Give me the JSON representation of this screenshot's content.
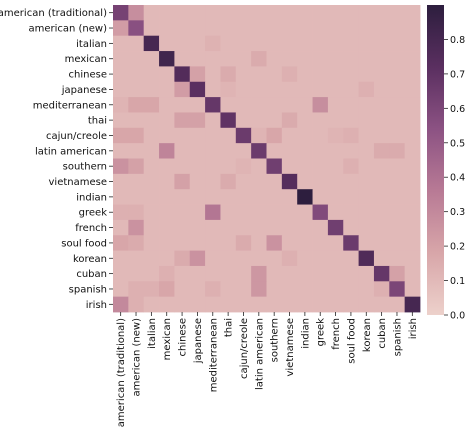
{
  "chart_data": {
    "type": "heatmap",
    "title": "",
    "xlabel": "",
    "ylabel": "",
    "categories": [
      "american (traditional)",
      "american (new)",
      "italian",
      "mexican",
      "chinese",
      "japanese",
      "mediterranean",
      "thai",
      "cajun/creole",
      "latin american",
      "southern",
      "vietnamese",
      "indian",
      "greek",
      "french",
      "soul food",
      "korean",
      "cuban",
      "spanish",
      "irish"
    ],
    "values": [
      [
        0.62,
        0.28,
        0.1,
        0.1,
        0.1,
        0.1,
        0.1,
        0.1,
        0.1,
        0.1,
        0.1,
        0.1,
        0.1,
        0.1,
        0.1,
        0.1,
        0.1,
        0.1,
        0.1,
        0.1
      ],
      [
        0.22,
        0.55,
        0.1,
        0.1,
        0.1,
        0.1,
        0.1,
        0.1,
        0.1,
        0.1,
        0.1,
        0.1,
        0.1,
        0.1,
        0.1,
        0.1,
        0.1,
        0.1,
        0.1,
        0.1
      ],
      [
        0.1,
        0.1,
        0.8,
        0.1,
        0.1,
        0.1,
        0.13,
        0.1,
        0.1,
        0.1,
        0.1,
        0.1,
        0.1,
        0.1,
        0.1,
        0.1,
        0.1,
        0.1,
        0.1,
        0.1
      ],
      [
        0.1,
        0.1,
        0.1,
        0.82,
        0.1,
        0.1,
        0.1,
        0.1,
        0.1,
        0.16,
        0.1,
        0.1,
        0.1,
        0.1,
        0.1,
        0.1,
        0.1,
        0.1,
        0.1,
        0.1
      ],
      [
        0.1,
        0.1,
        0.1,
        0.1,
        0.75,
        0.2,
        0.1,
        0.16,
        0.1,
        0.1,
        0.1,
        0.14,
        0.1,
        0.1,
        0.1,
        0.1,
        0.1,
        0.1,
        0.1,
        0.1
      ],
      [
        0.1,
        0.1,
        0.1,
        0.1,
        0.22,
        0.72,
        0.1,
        0.12,
        0.1,
        0.1,
        0.1,
        0.1,
        0.1,
        0.1,
        0.1,
        0.1,
        0.14,
        0.1,
        0.1,
        0.1
      ],
      [
        0.12,
        0.18,
        0.18,
        0.1,
        0.1,
        0.1,
        0.68,
        0.1,
        0.1,
        0.1,
        0.1,
        0.1,
        0.1,
        0.28,
        0.1,
        0.1,
        0.1,
        0.1,
        0.1,
        0.1
      ],
      [
        0.1,
        0.1,
        0.1,
        0.1,
        0.2,
        0.2,
        0.1,
        0.7,
        0.1,
        0.1,
        0.1,
        0.16,
        0.1,
        0.1,
        0.1,
        0.1,
        0.1,
        0.1,
        0.1,
        0.1
      ],
      [
        0.18,
        0.18,
        0.1,
        0.1,
        0.1,
        0.1,
        0.1,
        0.1,
        0.66,
        0.12,
        0.18,
        0.1,
        0.1,
        0.1,
        0.12,
        0.14,
        0.1,
        0.1,
        0.1,
        0.1
      ],
      [
        0.1,
        0.1,
        0.1,
        0.32,
        0.1,
        0.1,
        0.1,
        0.1,
        0.1,
        0.66,
        0.1,
        0.1,
        0.1,
        0.1,
        0.1,
        0.1,
        0.1,
        0.16,
        0.16,
        0.1
      ],
      [
        0.26,
        0.2,
        0.1,
        0.1,
        0.1,
        0.1,
        0.1,
        0.1,
        0.12,
        0.1,
        0.64,
        0.1,
        0.1,
        0.1,
        0.1,
        0.14,
        0.1,
        0.1,
        0.1,
        0.1
      ],
      [
        0.1,
        0.1,
        0.1,
        0.1,
        0.2,
        0.1,
        0.1,
        0.16,
        0.1,
        0.1,
        0.1,
        0.74,
        0.1,
        0.1,
        0.1,
        0.1,
        0.1,
        0.1,
        0.1,
        0.1
      ],
      [
        0.1,
        0.1,
        0.1,
        0.1,
        0.1,
        0.1,
        0.1,
        0.1,
        0.1,
        0.1,
        0.1,
        0.1,
        0.9,
        0.1,
        0.1,
        0.1,
        0.1,
        0.1,
        0.1,
        0.1
      ],
      [
        0.14,
        0.14,
        0.1,
        0.1,
        0.1,
        0.1,
        0.38,
        0.1,
        0.1,
        0.1,
        0.1,
        0.1,
        0.1,
        0.58,
        0.1,
        0.1,
        0.1,
        0.1,
        0.1,
        0.1
      ],
      [
        0.1,
        0.26,
        0.1,
        0.1,
        0.1,
        0.1,
        0.1,
        0.1,
        0.1,
        0.1,
        0.1,
        0.1,
        0.1,
        0.1,
        0.64,
        0.1,
        0.1,
        0.1,
        0.1,
        0.1
      ],
      [
        0.18,
        0.16,
        0.1,
        0.1,
        0.1,
        0.1,
        0.1,
        0.1,
        0.16,
        0.1,
        0.26,
        0.1,
        0.1,
        0.1,
        0.1,
        0.66,
        0.1,
        0.1,
        0.1,
        0.1
      ],
      [
        0.1,
        0.1,
        0.1,
        0.1,
        0.16,
        0.26,
        0.1,
        0.1,
        0.1,
        0.1,
        0.1,
        0.14,
        0.1,
        0.1,
        0.1,
        0.1,
        0.76,
        0.1,
        0.1,
        0.1
      ],
      [
        0.1,
        0.1,
        0.1,
        0.14,
        0.1,
        0.1,
        0.1,
        0.1,
        0.1,
        0.24,
        0.1,
        0.1,
        0.1,
        0.1,
        0.1,
        0.1,
        0.1,
        0.68,
        0.2,
        0.1
      ],
      [
        0.1,
        0.14,
        0.14,
        0.18,
        0.1,
        0.1,
        0.14,
        0.1,
        0.1,
        0.24,
        0.1,
        0.1,
        0.1,
        0.1,
        0.1,
        0.1,
        0.1,
        0.14,
        0.6,
        0.1
      ],
      [
        0.3,
        0.14,
        0.1,
        0.1,
        0.1,
        0.1,
        0.1,
        0.1,
        0.1,
        0.1,
        0.1,
        0.1,
        0.1,
        0.1,
        0.1,
        0.1,
        0.1,
        0.1,
        0.1,
        0.8
      ]
    ],
    "colorbar": {
      "ticks": [
        0.0,
        0.1,
        0.2,
        0.3,
        0.4,
        0.5,
        0.6,
        0.7,
        0.8
      ],
      "tick_labels": [
        "0.0",
        "0.1",
        "0.2",
        "0.3",
        "0.4",
        "0.5",
        "0.6",
        "0.7",
        "0.8"
      ],
      "range": [
        0.0,
        0.9
      ]
    },
    "colormap": [
      "#edd1cb",
      "#d8a6a9",
      "#b87a95",
      "#8c5283",
      "#5a2f60",
      "#2d1e3e"
    ],
    "grid": false,
    "legend": "colorbar on the right"
  }
}
